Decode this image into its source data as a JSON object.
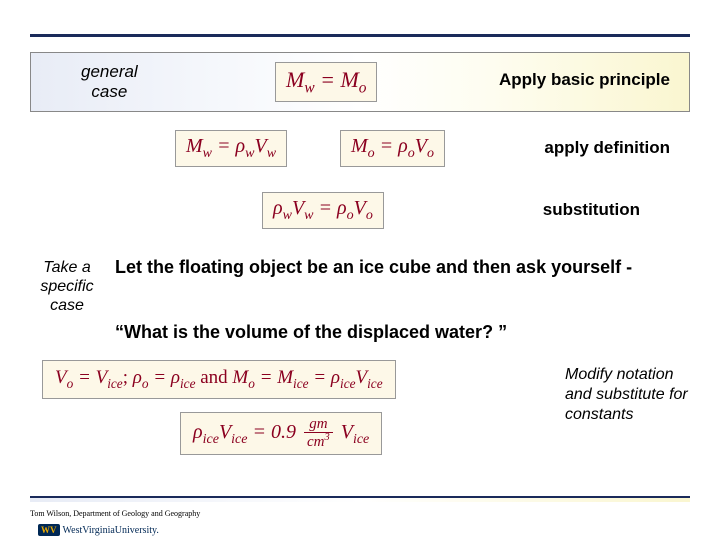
{
  "header": {
    "general_case": "general\ncase",
    "apply_basic": "Apply basic principle"
  },
  "equations": {
    "main": "M<sub>w</sub> = M<sub>o</sub>",
    "mw": "M<sub>w</sub> = ρ<sub>w</sub>V<sub>w</sub>",
    "mo": "M<sub>o</sub> = ρ<sub>o</sub>V<sub>o</sub>",
    "sub": "ρ<sub>w</sub>V<sub>w</sub> = ρ<sub>o</sub>V<sub>o</sub>",
    "long_html": "<span class='it'>V<sub>o</sub> = V<sub>ice</sub></span>; <span class='it'>ρ<sub>o</sub> = ρ<sub>ice</sub></span> <span class='rm'>and</span> <span class='it'>M<sub>o</sub> = M<sub>ice</sub> = ρ<sub>ice</sub>V<sub>ice</sub></span>",
    "final_html": "ρ<sub>ice</sub>V<sub>ice</sub> = 0.9 <span class='frac'><span class='num'>gm</span><span class='den'>cm<sup style=\"font-size:0.7em\">3</sup></span></span> V<sub>ice</sub>"
  },
  "labels": {
    "apply_def": "apply definition",
    "substitution": "substitution",
    "take_specific": "Take a specific case",
    "let_floating": "Let the floating object be an ice cube and then ask yourself  -",
    "what_volume": "“What is the volume of the displaced water? ”",
    "modify": "Modify notation and substitute for constants"
  },
  "footer": {
    "credit": "Tom Wilson, Department of Geology and Geography",
    "logo_mark": "WV",
    "logo_text": "WestVirginiaUniversity."
  },
  "colors": {
    "rule": "#1a2a5a",
    "eq_text": "#8b0020",
    "eq_bg": "#fdf8e8"
  }
}
